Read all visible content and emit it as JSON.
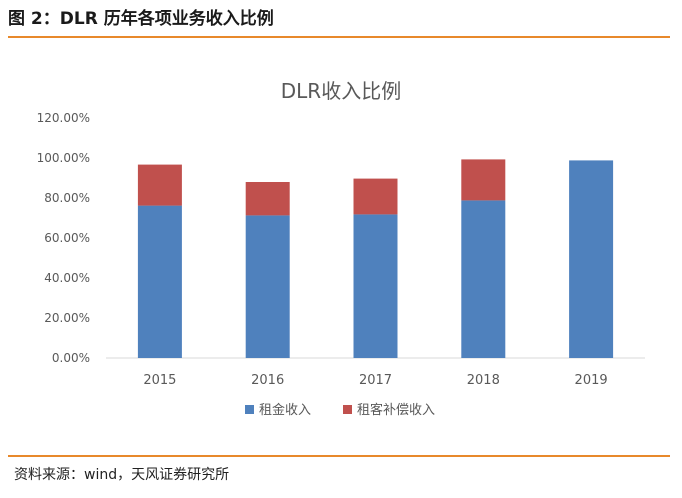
{
  "header": {
    "title": "图 2：DLR 历年各项业务收入比例"
  },
  "footer": {
    "source": "资料来源：wind，天风证券研究所"
  },
  "colors": {
    "accent": "#e8892b",
    "series1": "#4f81bd",
    "series2": "#c0504d"
  },
  "chart_data": {
    "type": "bar",
    "stacked": true,
    "title": "DLR收入比例",
    "categories": [
      "2015",
      "2016",
      "2017",
      "2018",
      "2019"
    ],
    "series": [
      {
        "name": "租金收入",
        "values": [
          76.2,
          71.3,
          71.8,
          78.8,
          98.8
        ]
      },
      {
        "name": "租客补偿收入",
        "values": [
          20.5,
          16.7,
          17.9,
          20.5,
          0
        ]
      }
    ],
    "ylim": [
      0,
      120
    ],
    "yticks": [
      "0.00%",
      "20.00%",
      "40.00%",
      "60.00%",
      "80.00%",
      "100.00%",
      "120.00%"
    ],
    "grid": false,
    "legend": "bottom"
  }
}
